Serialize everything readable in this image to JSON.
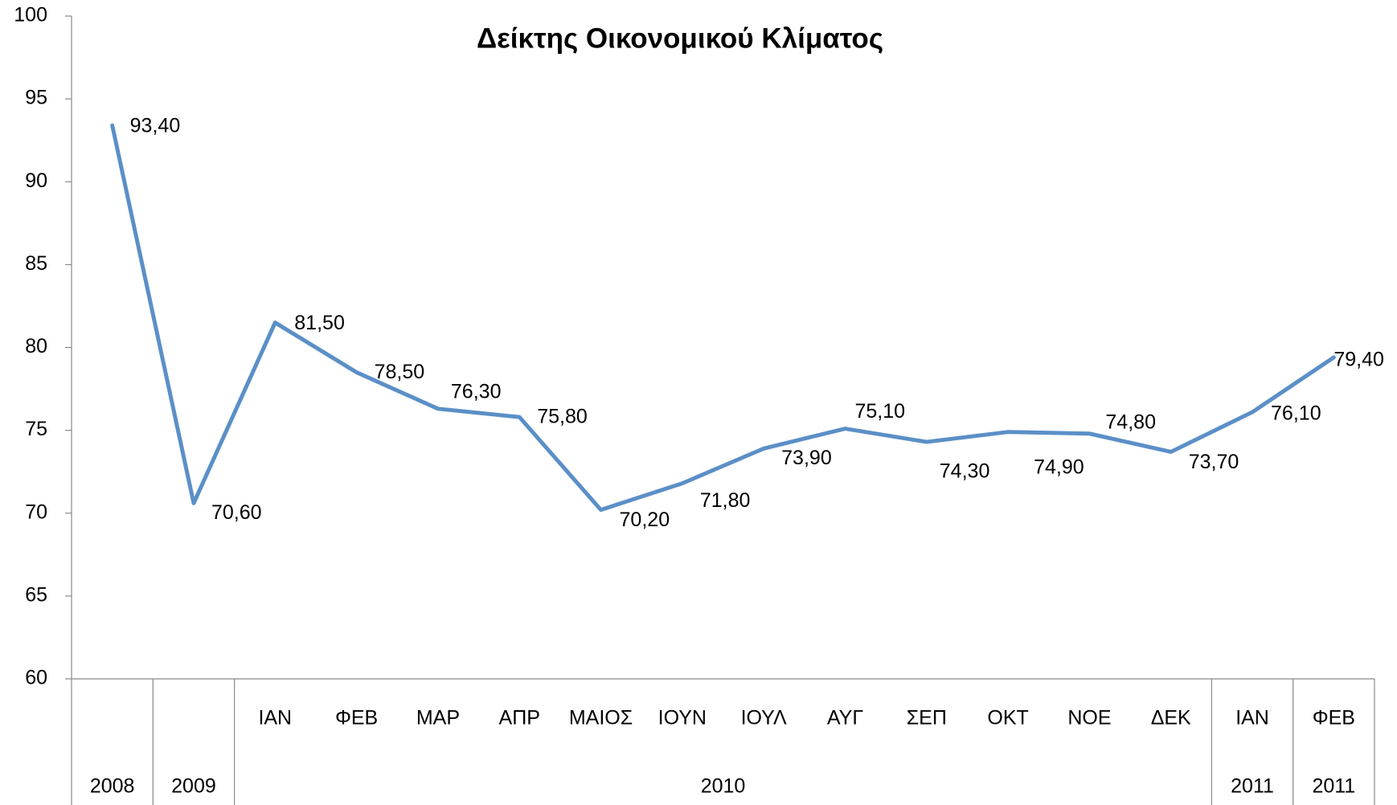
{
  "chart_data": {
    "type": "line",
    "title": "Δείκτης Οικονομικού Κλίματος",
    "categories": [
      null,
      null,
      "ΙΑΝ",
      "ΦΕΒ",
      "ΜΑΡ",
      "ΑΠΡ",
      "ΜΑΙΟΣ",
      "ΙΟΥΝ",
      "ΙΟΥΛ",
      "ΑΥΓ",
      "ΣΕΠ",
      "ΟΚΤ",
      "ΝΟΕ",
      "ΔΕΚ",
      "ΙΑΝ",
      "ΦΕΒ"
    ],
    "category_groups": [
      {
        "label": "2008",
        "count": 1
      },
      {
        "label": "2009",
        "count": 1
      },
      {
        "label": "2010",
        "count": 12
      },
      {
        "label": "2011",
        "count": 1
      },
      {
        "label": "2011",
        "count": 1
      }
    ],
    "series": [
      {
        "name": "Δείκτης Οικονομικού Κλίματος",
        "color": "#5b8fc7",
        "values": [
          93.4,
          70.6,
          81.5,
          78.5,
          76.3,
          75.8,
          70.2,
          71.8,
          73.9,
          75.1,
          74.3,
          74.9,
          74.8,
          73.7,
          76.1,
          79.4
        ],
        "value_labels": [
          "93,40",
          "70,60",
          "81,50",
          "78,50",
          "76,30",
          "75,80",
          "70,20",
          "71,80",
          "73,90",
          "75,10",
          "74,30",
          "74,90",
          "74,80",
          "73,70",
          "76,10",
          "79,40"
        ]
      }
    ],
    "ylim": [
      60,
      100
    ],
    "yticks": [
      60,
      65,
      70,
      75,
      80,
      85,
      90,
      95,
      100
    ],
    "grid": false
  }
}
